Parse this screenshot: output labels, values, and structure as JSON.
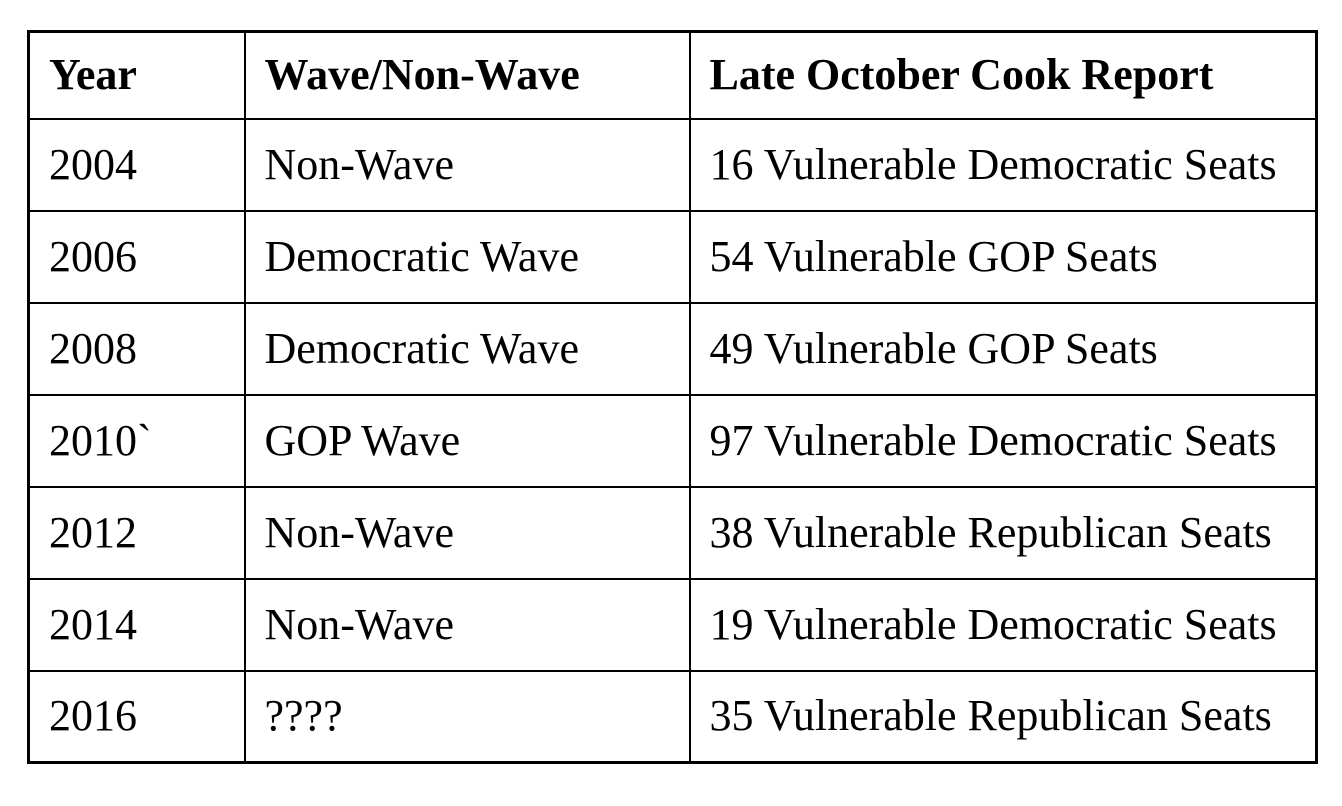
{
  "table": {
    "columns": [
      "Year",
      "Wave/Non-Wave",
      "Late October Cook Report"
    ],
    "rows": [
      {
        "year": "2004",
        "wave": "Non-Wave",
        "cook": "16 Vulnerable Democratic Seats"
      },
      {
        "year": "2006",
        "wave": "Democratic Wave",
        "cook": "54 Vulnerable GOP Seats"
      },
      {
        "year": "2008",
        "wave": "Democratic Wave",
        "cook": "49 Vulnerable GOP Seats"
      },
      {
        "year": "2010`",
        "wave": "GOP Wave",
        "cook": "97 Vulnerable Democratic Seats"
      },
      {
        "year": "2012",
        "wave": "Non-Wave",
        "cook": "38 Vulnerable Republican Seats"
      },
      {
        "year": "2014",
        "wave": "Non-Wave",
        "cook": "19 Vulnerable Democratic Seats"
      },
      {
        "year": "2016",
        "wave": "????",
        "cook": "35 Vulnerable Republican Seats"
      }
    ]
  }
}
